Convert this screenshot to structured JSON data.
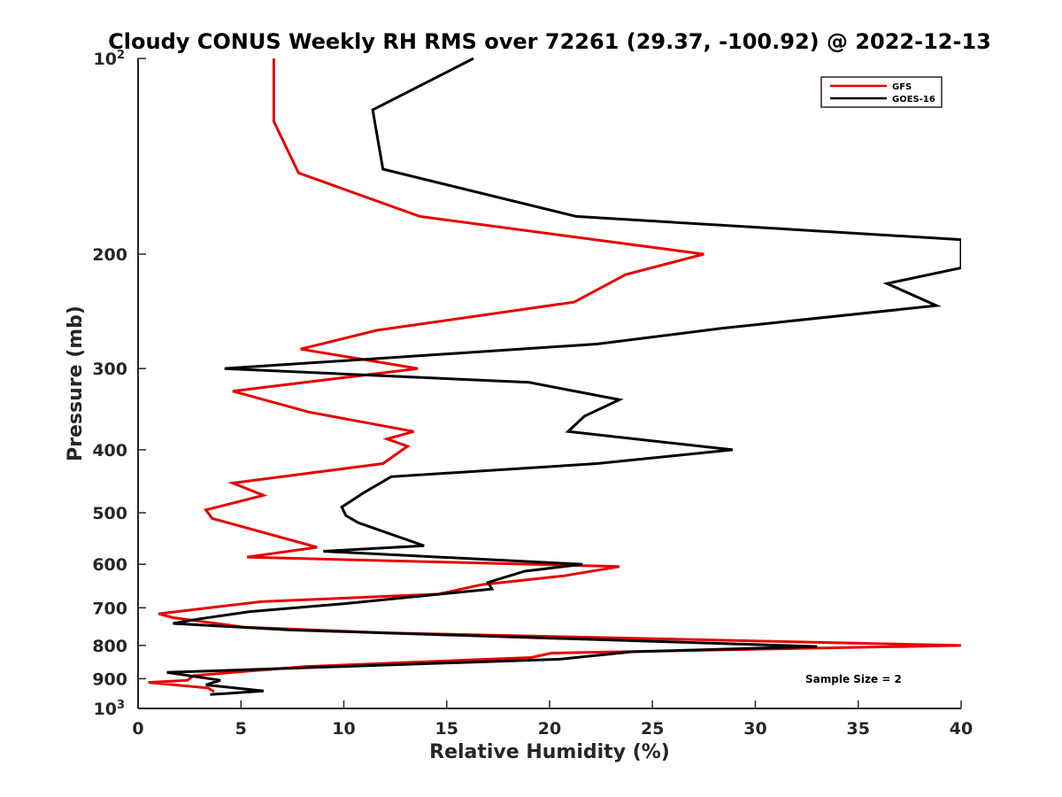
{
  "chart_data": {
    "type": "line",
    "title": "Cloudy CONUS Weekly RH RMS over 72261 (29.37, -100.92) @ 2022-12-13",
    "xlabel": "Relative Humidity (%)",
    "ylabel": "Pressure (mb)",
    "xlim": [
      0,
      40
    ],
    "ylim": [
      100,
      1000
    ],
    "y_scale": "log",
    "y_reversed": true,
    "x_ticks": [
      0,
      5,
      10,
      15,
      20,
      25,
      30,
      35,
      40
    ],
    "y_ticks": [
      {
        "value": 100,
        "label": "10",
        "sup": "2"
      },
      {
        "value": 200,
        "label": "200"
      },
      {
        "value": 300,
        "label": "300"
      },
      {
        "value": 400,
        "label": "400"
      },
      {
        "value": 500,
        "label": "500"
      },
      {
        "value": 600,
        "label": "600"
      },
      {
        "value": 700,
        "label": "700"
      },
      {
        "value": 800,
        "label": "800"
      },
      {
        "value": 900,
        "label": "900"
      },
      {
        "value": 1000,
        "label": "10",
        "sup": "3"
      }
    ],
    "legend_position": "top-right",
    "annotation": "Sample Size = 2",
    "series": [
      {
        "name": "GFS",
        "color": "#e60000",
        "points": [
          [
            6.6,
            100
          ],
          [
            6.6,
            125
          ],
          [
            7.8,
            150
          ],
          [
            13.7,
            175
          ],
          [
            27.5,
            200
          ],
          [
            23.7,
            215
          ],
          [
            21.2,
            237
          ],
          [
            11.6,
            262
          ],
          [
            7.9,
            280
          ],
          [
            13.6,
            300
          ],
          [
            4.6,
            325
          ],
          [
            8.3,
            350
          ],
          [
            13.4,
            375
          ],
          [
            12.1,
            385
          ],
          [
            13.1,
            395
          ],
          [
            11.9,
            420
          ],
          [
            4.6,
            450
          ],
          [
            6.1,
            470
          ],
          [
            3.3,
            495
          ],
          [
            3.6,
            510
          ],
          [
            8.7,
            565
          ],
          [
            5.3,
            585
          ],
          [
            23.4,
            605
          ],
          [
            20.7,
            625
          ],
          [
            16.7,
            645
          ],
          [
            14.6,
            667
          ],
          [
            6.0,
            685
          ],
          [
            1.0,
            715
          ],
          [
            1.7,
            725
          ],
          [
            5.2,
            750
          ],
          [
            12.0,
            765
          ],
          [
            40.0,
            800
          ],
          [
            20.1,
            822
          ],
          [
            19.1,
            835
          ],
          [
            8.1,
            862
          ],
          [
            2.7,
            890
          ],
          [
            2.4,
            905
          ],
          [
            0.5,
            912
          ],
          [
            3.4,
            930
          ],
          [
            3.7,
            942
          ]
        ]
      },
      {
        "name": "GOES-16",
        "color": "#000000",
        "points": [
          [
            16.3,
            100
          ],
          [
            11.4,
            120
          ],
          [
            11.9,
            148
          ],
          [
            21.3,
            175
          ],
          [
            40.0,
            190
          ],
          [
            40.0,
            210
          ],
          [
            36.4,
            222
          ],
          [
            38.8,
            240
          ],
          [
            28.4,
            260
          ],
          [
            22.3,
            275
          ],
          [
            4.2,
            300
          ],
          [
            19.0,
            315
          ],
          [
            23.4,
            335
          ],
          [
            21.7,
            355
          ],
          [
            20.9,
            375
          ],
          [
            28.9,
            400
          ],
          [
            22.3,
            420
          ],
          [
            12.3,
            440
          ],
          [
            11.0,
            465
          ],
          [
            9.9,
            490
          ],
          [
            10.1,
            505
          ],
          [
            10.7,
            518
          ],
          [
            13.9,
            562
          ],
          [
            9.0,
            573
          ],
          [
            21.6,
            600
          ],
          [
            18.8,
            615
          ],
          [
            17.0,
            640
          ],
          [
            17.2,
            655
          ],
          [
            10.0,
            690
          ],
          [
            5.4,
            710
          ],
          [
            3.0,
            728
          ],
          [
            1.7,
            740
          ],
          [
            7.3,
            757
          ],
          [
            33.0,
            803
          ],
          [
            24.0,
            818
          ],
          [
            20.5,
            840
          ],
          [
            1.4,
            880
          ],
          [
            4.0,
            905
          ],
          [
            3.3,
            920
          ],
          [
            6.1,
            940
          ],
          [
            3.5,
            952
          ]
        ]
      }
    ]
  }
}
